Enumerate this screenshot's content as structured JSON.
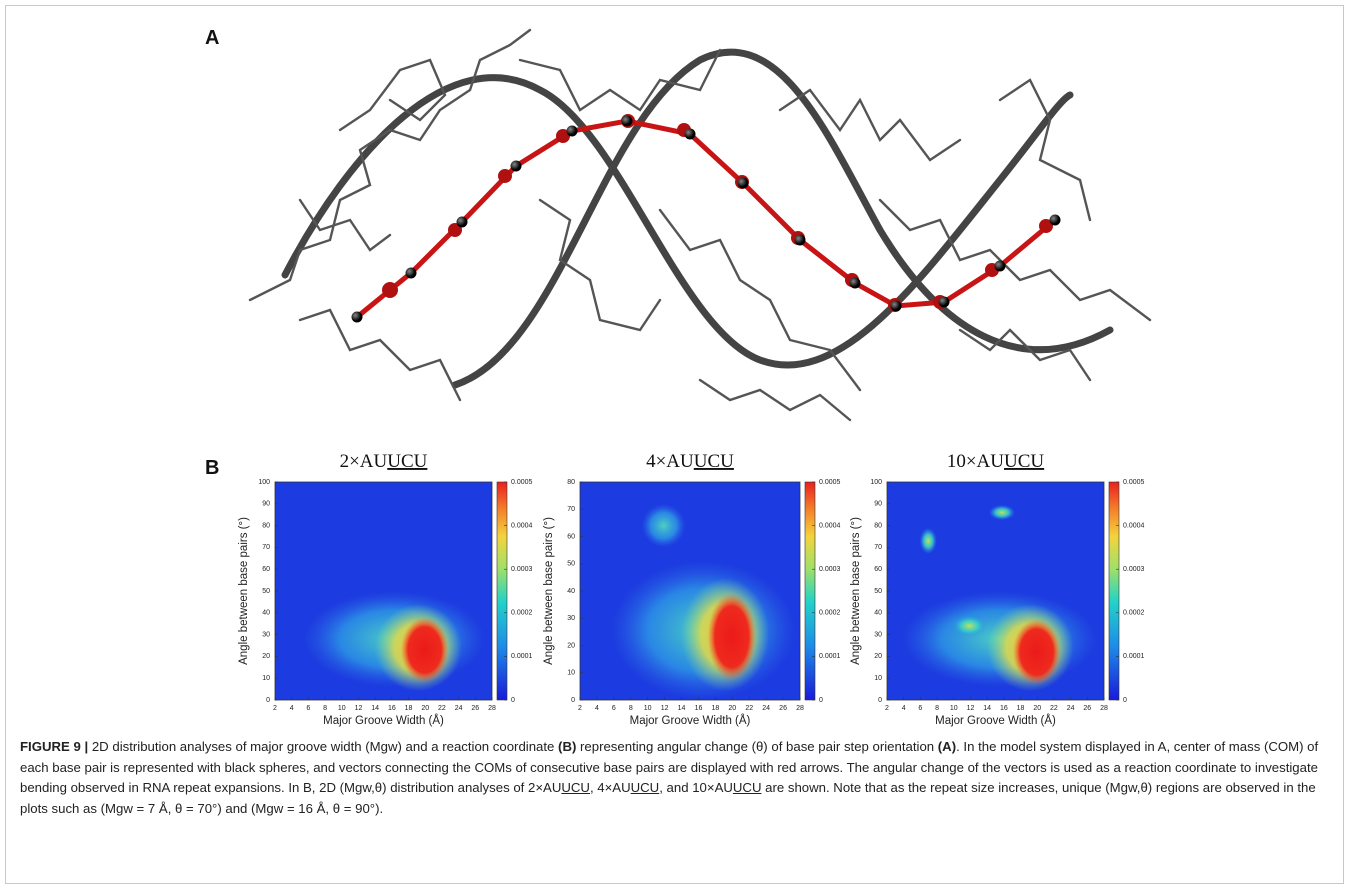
{
  "panel_a": {
    "label": "A"
  },
  "panel_b": {
    "label": "B"
  },
  "charts": [
    {
      "type": "heatmap",
      "title": "2×AU",
      "title_underlined": "UCU",
      "xlabel": "Major Groove Width (Å)",
      "ylabel": "Angle between base pairs (°)",
      "xlim": [
        2,
        28
      ],
      "xticks": [
        2,
        4,
        6,
        8,
        10,
        12,
        14,
        16,
        18,
        20,
        22,
        24,
        26,
        28
      ],
      "ylim": [
        0,
        100
      ],
      "yticks": [
        0,
        10,
        20,
        30,
        40,
        50,
        60,
        70,
        80,
        90,
        100
      ],
      "colorbar_lim": [
        0,
        0.0005
      ],
      "colorbar_ticks": [
        0,
        0.0001,
        0.0002,
        0.0003,
        0.0004,
        0.0005
      ]
    },
    {
      "type": "heatmap",
      "title": "4×AU",
      "title_underlined": "UCU",
      "xlabel": "Major Groove Width (Å)",
      "ylabel": "Angle between base pairs (°)",
      "xlim": [
        2,
        28
      ],
      "xticks": [
        2,
        4,
        6,
        8,
        10,
        12,
        14,
        16,
        18,
        20,
        22,
        24,
        26,
        28
      ],
      "ylim": [
        0,
        80
      ],
      "yticks": [
        0,
        10,
        20,
        30,
        40,
        50,
        60,
        70,
        80
      ],
      "colorbar_lim": [
        0,
        0.0005
      ],
      "colorbar_ticks": [
        0,
        0.0001,
        0.0002,
        0.0003,
        0.0004,
        0.0005
      ]
    },
    {
      "type": "heatmap",
      "title": "10×AU",
      "title_underlined": "UCU",
      "xlabel": "Major Groove Width (Å)",
      "ylabel": "Angle between base pairs (°)",
      "xlim": [
        2,
        28
      ],
      "xticks": [
        2,
        4,
        6,
        8,
        10,
        12,
        14,
        16,
        18,
        20,
        22,
        24,
        26,
        28
      ],
      "ylim": [
        0,
        100
      ],
      "yticks": [
        0,
        10,
        20,
        30,
        40,
        50,
        60,
        70,
        80,
        90,
        100
      ],
      "colorbar_lim": [
        0,
        0.0005
      ],
      "colorbar_ticks": [
        0,
        0.0001,
        0.0002,
        0.0003,
        0.0004,
        0.0005
      ]
    }
  ],
  "caption": [
    "FIGURE 9 |",
    " 2D distribution analyses of major groove width (Mgw) and a reaction coordinate ",
    "(B)",
    " representing angular change (θ) of base pair step orientation ",
    "(A)",
    ". In the model system displayed in A, center of mass (COM) of each base pair is represented with black spheres, and vectors connecting the COMs of consecutive base pairs are displayed with red arrows. The angular change of the vectors is used as a reaction coordinate to investigate bending observed in RNA repeat expansions. In B, 2D (Mgw,θ) distribution analyses of 2×AU",
    "UCU",
    ", 4×AU",
    "UCU",
    ", and 10×AU",
    "UCU",
    " are shown. Note that as the repeat size increases, unique (Mgw,θ) regions are observed in the plots such as (Mgw = 7 Å, θ = 70°) and (Mgw = 16 Å, θ = 90°)."
  ]
}
